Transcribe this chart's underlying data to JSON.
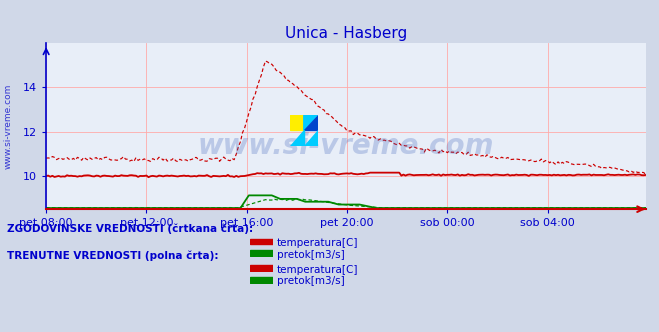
{
  "title": "Unica - Hasberg",
  "title_color": "#0000cc",
  "bg_color": "#d0d8e8",
  "plot_bg_color": "#e8eef8",
  "grid_color": "#ffaaaa",
  "axis_color": "#0000cc",
  "watermark_text": "www.si-vreme.com",
  "watermark_color": "#4466bb",
  "watermark_alpha": 0.28,
  "ylabel_side_text": "www.si-vreme.com",
  "xlim": [
    0,
    287
  ],
  "ylim": [
    8.5,
    16.0
  ],
  "yticks": [
    10,
    12,
    14
  ],
  "xtick_labels": [
    "pet 08:00",
    "pet 12:00",
    "pet 16:00",
    "pet 20:00",
    "sob 00:00",
    "sob 04:00"
  ],
  "xtick_positions": [
    0,
    48,
    96,
    144,
    192,
    240
  ],
  "legend_text1": "ZGODOVINSKE VREDNOSTI (črtkana črta):",
  "legend_text2": "TRENUTNE VREDNOSTI (polna črta):",
  "legend_temp": "temperatura[C]",
  "legend_pretok": "pretok[m3/s]",
  "red_color": "#cc0000",
  "green_color": "#008800",
  "n_points": 288
}
